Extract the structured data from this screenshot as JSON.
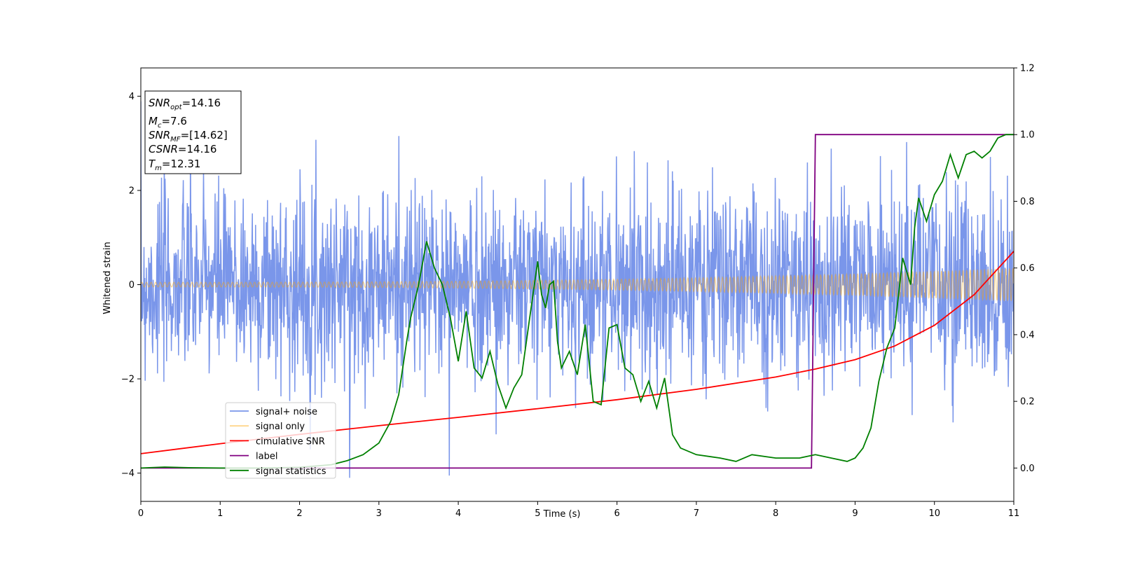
{
  "chart_data": {
    "type": "line",
    "title": "",
    "xlabel": "Time (s)",
    "ylabel": "Whitened strain",
    "y2label": "",
    "xlim": [
      0,
      11
    ],
    "ylim": [
      -4.6,
      4.6
    ],
    "y2lim": [
      -0.1,
      1.2
    ],
    "x_ticks": [
      0,
      1,
      2,
      3,
      4,
      5,
      6,
      7,
      8,
      9,
      10,
      11
    ],
    "y_ticks": [
      -4,
      -2,
      0,
      2,
      4
    ],
    "y_tick_labels": [
      "−4",
      "−2",
      "0",
      "2",
      "4"
    ],
    "y2_ticks": [
      0.0,
      0.2,
      0.4,
      0.6,
      0.8,
      1.0,
      1.2
    ],
    "y2_tick_labels": [
      "0.0",
      "0.2",
      "0.4",
      "0.6",
      "0.8",
      "1.0",
      "1.2"
    ],
    "grid": false,
    "legend_position": "lower-left",
    "info_box": {
      "snr_opt": {
        "base": "SNR",
        "sub": "opt",
        "value": "=14.16"
      },
      "mc": {
        "base": "M",
        "sub": "c",
        "value": "=7.6"
      },
      "snr_mf": {
        "base": "SNR",
        "sub": "MF",
        "value": "=[14.62]"
      },
      "csnr": {
        "base": "CSNR",
        "value": "=14.16"
      },
      "tm": {
        "base": "T",
        "sub": "m",
        "value": "=12.31"
      }
    },
    "series": [
      {
        "name": "signal+ noise",
        "axis": "left",
        "color": "#4169E1",
        "opacity": 0.7,
        "description_stats": {
          "std": 1.0,
          "min": -4.1,
          "max": 4.2,
          "n_samples": 2200
        },
        "seed": 7
      },
      {
        "name": "signal only",
        "axis": "left",
        "color": "#FFA500",
        "opacity": 0.45,
        "amplitude_start": 0.05,
        "amplitude_end": 0.35,
        "cycles": 190
      },
      {
        "name": "cimulative SNR",
        "axis": "right",
        "color": "#FF0000",
        "x": [
          0,
          1,
          2,
          3,
          4,
          5,
          6,
          7,
          8,
          8.5,
          9,
          9.5,
          10,
          10.5,
          11
        ],
        "y": [
          0.043,
          0.073,
          0.101,
          0.127,
          0.152,
          0.178,
          0.205,
          0.236,
          0.273,
          0.297,
          0.325,
          0.366,
          0.428,
          0.52,
          0.65
        ]
      },
      {
        "name": "label",
        "axis": "right",
        "color": "#800080",
        "x": [
          0,
          8.45,
          8.5,
          11
        ],
        "y": [
          0.0,
          0.0,
          1.0,
          1.0
        ]
      },
      {
        "name": "signal statistics",
        "axis": "right",
        "color": "#008000",
        "x": [
          0.0,
          0.3,
          0.6,
          1.0,
          1.5,
          2.0,
          2.4,
          2.6,
          2.8,
          3.0,
          3.15,
          3.25,
          3.35,
          3.4,
          3.5,
          3.6,
          3.7,
          3.8,
          3.9,
          4.0,
          4.1,
          4.2,
          4.3,
          4.4,
          4.5,
          4.6,
          4.7,
          4.8,
          4.9,
          5.0,
          5.05,
          5.1,
          5.15,
          5.2,
          5.25,
          5.3,
          5.4,
          5.5,
          5.6,
          5.7,
          5.8,
          5.9,
          6.0,
          6.1,
          6.2,
          6.3,
          6.4,
          6.5,
          6.6,
          6.7,
          6.8,
          7.0,
          7.3,
          7.5,
          7.7,
          8.0,
          8.3,
          8.5,
          8.7,
          8.9,
          9.0,
          9.1,
          9.2,
          9.3,
          9.4,
          9.5,
          9.6,
          9.7,
          9.75,
          9.8,
          9.9,
          10.0,
          10.1,
          10.2,
          10.3,
          10.4,
          10.5,
          10.6,
          10.7,
          10.8,
          10.9,
          11.0
        ],
        "y": [
          0.0,
          0.003,
          0.001,
          0.0,
          0.0,
          0.002,
          0.01,
          0.022,
          0.04,
          0.075,
          0.14,
          0.22,
          0.38,
          0.45,
          0.55,
          0.68,
          0.6,
          0.55,
          0.45,
          0.32,
          0.47,
          0.3,
          0.27,
          0.35,
          0.25,
          0.18,
          0.24,
          0.28,
          0.45,
          0.62,
          0.52,
          0.48,
          0.55,
          0.56,
          0.38,
          0.3,
          0.35,
          0.28,
          0.43,
          0.2,
          0.19,
          0.42,
          0.43,
          0.3,
          0.28,
          0.2,
          0.26,
          0.18,
          0.27,
          0.1,
          0.06,
          0.04,
          0.03,
          0.02,
          0.04,
          0.03,
          0.03,
          0.04,
          0.03,
          0.02,
          0.03,
          0.06,
          0.12,
          0.26,
          0.36,
          0.42,
          0.63,
          0.55,
          0.72,
          0.81,
          0.74,
          0.82,
          0.86,
          0.94,
          0.87,
          0.94,
          0.95,
          0.93,
          0.95,
          0.99,
          1.0,
          1.0
        ]
      }
    ]
  }
}
